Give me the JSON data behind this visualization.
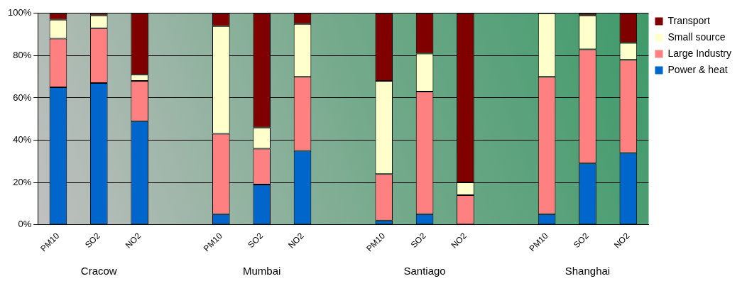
{
  "chart_data": {
    "type": "bar",
    "stacked": true,
    "categories": [
      "PM10",
      "SO2",
      "NO2",
      null,
      "PM10",
      "SO2",
      "NO2",
      null,
      "PM10",
      "SO2",
      "NO2",
      null,
      "PM10",
      "SO2",
      "NO2"
    ],
    "series": [
      {
        "name": "Power & heat",
        "color": "#0066cc",
        "values": [
          65,
          67,
          49,
          null,
          5,
          19,
          35,
          null,
          2,
          5,
          0,
          null,
          5,
          29,
          34
        ]
      },
      {
        "name": "Large Industry",
        "color": "#ff8080",
        "values": [
          23,
          26,
          19,
          null,
          38,
          17,
          35,
          null,
          22,
          58,
          14,
          null,
          65,
          54,
          44
        ]
      },
      {
        "name": "Small source",
        "color": "#ffffcc",
        "values": [
          9,
          6,
          3,
          null,
          51,
          10,
          25,
          null,
          44,
          18,
          6,
          null,
          30,
          16,
          8
        ]
      },
      {
        "name": "Transport",
        "color": "#800000",
        "values": [
          3,
          1,
          29,
          null,
          6,
          54,
          5,
          null,
          32,
          19,
          80,
          null,
          0,
          1,
          14
        ]
      }
    ],
    "ylim": [
      0,
      100
    ],
    "yticks": [
      {
        "value": 0,
        "label": "0%"
      },
      {
        "value": 20,
        "label": "20%"
      },
      {
        "value": 40,
        "label": "40%"
      },
      {
        "value": 60,
        "label": "60%"
      },
      {
        "value": 80,
        "label": "80%"
      },
      {
        "value": 100,
        "label": "100%"
      }
    ],
    "grid": "y",
    "legend": "top right",
    "annotations": [
      "Cracow",
      "Mumbai",
      "Santiago",
      "Shanghai"
    ]
  }
}
